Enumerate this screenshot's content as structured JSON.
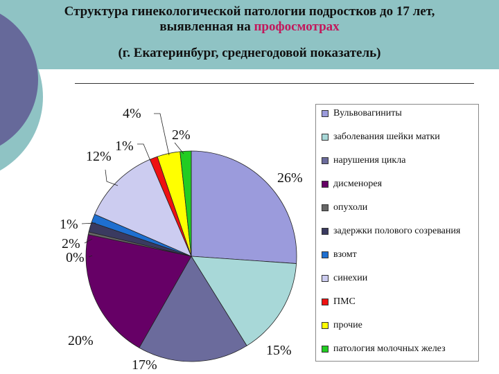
{
  "header": {
    "title_line1": "Структура гинекологической патологии подростков до 17 лет,",
    "title_line2_prefix": "выявленная на ",
    "title_line2_highlight": "профосмотрах",
    "subtitle": "(г. Екатеринбург, среднегодовой показатель)",
    "background_color": "#8fc3c4",
    "highlight_color": "#c2185b"
  },
  "chart_data": {
    "type": "pie",
    "title": "",
    "legend_position": "right",
    "slices": [
      {
        "name": "Вульвовагиниты",
        "value": 26,
        "label": "26%",
        "color": "#9b9bdc"
      },
      {
        "name": "заболевания шейки матки",
        "value": 15,
        "label": "15%",
        "color": "#a8d8d8"
      },
      {
        "name": "нарушения цикла",
        "value": 17,
        "label": "17%",
        "color": "#6b6b9c"
      },
      {
        "name": "дисменорея",
        "value": 20,
        "label": "20%",
        "color": "#660066"
      },
      {
        "name": "опухоли",
        "value": 0.4,
        "label": "0%",
        "color": "#666666"
      },
      {
        "name": "задержки полового созревания",
        "value": 1.5,
        "label": "2%",
        "color": "#3a3a60"
      },
      {
        "name": "взомт",
        "value": 1.3,
        "label": "1%",
        "color": "#1e6fd0"
      },
      {
        "name": "синехии",
        "value": 12,
        "label": "12%",
        "color": "#ccccf0"
      },
      {
        "name": "ПМС",
        "value": 1.2,
        "label": "1%",
        "color": "#ee1111"
      },
      {
        "name": "прочие",
        "value": 3.5,
        "label": "4%",
        "color": "#ffff00"
      },
      {
        "name": "патология молочных желез",
        "value": 1.7,
        "label": "2%",
        "color": "#22cc22"
      }
    ]
  }
}
